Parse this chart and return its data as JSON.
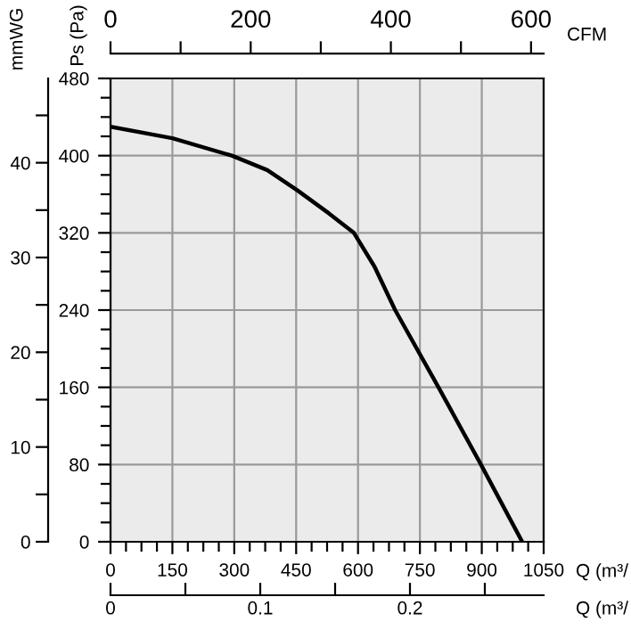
{
  "chart_data": {
    "type": "line",
    "xlabel": "Q (m³/",
    "ylabel": "Ps (Pa)",
    "y2label": "mmWG",
    "x2label": "CFM",
    "xlim": [
      0,
      1050
    ],
    "xticks": [
      0,
      {
        "value": 37.5,
        "label": null
      },
      {
        "value": 75,
        "label": null
      },
      {
        "value": 112.5,
        "label": null
      },
      150,
      {
        "value": 187.5,
        "label": null
      },
      {
        "value": 225,
        "label": null
      },
      {
        "value": 262.5,
        "label": null
      },
      300,
      {
        "value": 337.5,
        "label": null
      },
      {
        "value": 375,
        "label": null
      },
      {
        "value": 412.5,
        "label": null
      },
      450,
      {
        "value": 487.5,
        "label": null
      },
      {
        "value": 525,
        "label": null
      },
      {
        "value": 562.5,
        "label": null
      },
      600,
      {
        "value": 637.5,
        "label": null
      },
      {
        "value": 675,
        "label": null
      },
      {
        "value": 712.5,
        "label": null
      },
      750,
      {
        "value": 787.5,
        "label": null
      },
      {
        "value": 825,
        "label": null
      },
      {
        "value": 862.5,
        "label": null
      },
      900,
      {
        "value": 937.5,
        "label": null
      },
      {
        "value": 975,
        "label": null
      },
      {
        "value": 1012.5,
        "label": null
      },
      1050
    ],
    "ylim": [
      0,
      480
    ],
    "yticks": [
      0,
      {
        "value": 20,
        "label": null
      },
      {
        "value": 40,
        "label": null
      },
      {
        "value": 60,
        "label": null
      },
      80,
      {
        "value": 100,
        "label": null
      },
      {
        "value": 120,
        "label": null
      },
      {
        "value": 140,
        "label": null
      },
      160,
      {
        "value": 180,
        "label": null
      },
      {
        "value": 200,
        "label": null
      },
      {
        "value": 220,
        "label": null
      },
      240,
      {
        "value": 260,
        "label": null
      },
      {
        "value": 280,
        "label": null
      },
      {
        "value": 300,
        "label": null
      },
      320,
      {
        "value": 340,
        "label": null
      },
      {
        "value": 360,
        "label": null
      },
      {
        "value": 380,
        "label": null
      },
      400,
      {
        "value": 420,
        "label": null
      },
      {
        "value": 440,
        "label": null
      },
      {
        "value": 460,
        "label": null
      },
      480
    ],
    "x2lim": [
      0,
      618
    ],
    "x2ticks": [
      0,
      200,
      400,
      600
    ],
    "y2lim": [
      0,
      48.9
    ],
    "y2ticks": [
      0,
      10,
      20,
      30,
      40
    ],
    "grid": true,
    "annotations": [
      "0",
      "0.1",
      "0.2",
      "Q (m³/"
    ],
    "series": [
      {
        "color": "#000000",
        "x": [
          0,
          150,
          294,
          380,
          453,
          530,
          590,
          640,
          690,
          795,
          898,
          998
        ],
        "values": [
          430,
          418,
          400,
          385,
          364,
          340,
          320,
          285,
          240,
          160,
          80,
          0
        ]
      }
    ]
  }
}
